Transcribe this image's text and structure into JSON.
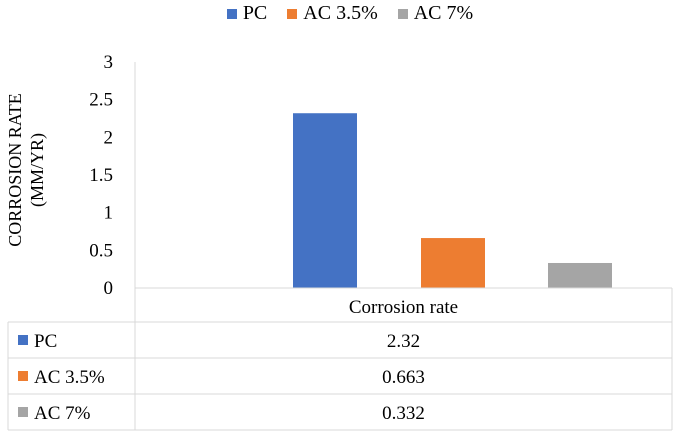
{
  "chart_data": {
    "type": "bar",
    "categories": [
      "Corrosion rate"
    ],
    "series": [
      {
        "name": "PC",
        "values": [
          2.32
        ],
        "color": "#4472C4",
        "label": "2.32"
      },
      {
        "name": "AC 3.5%",
        "values": [
          0.663
        ],
        "color": "#ED7D31",
        "label": "0.663"
      },
      {
        "name": "AC 7%",
        "values": [
          0.332
        ],
        "color": "#A5A5A5",
        "label": "0.332"
      }
    ],
    "ylabel_line1": "CORROSION RATE",
    "ylabel_line2": "(MM/YR)",
    "yticks": [
      "0",
      "0.5",
      "1",
      "1.5",
      "2",
      "2.5",
      "3"
    ],
    "ylim": [
      0,
      3
    ],
    "legend_position": "top",
    "data_table": true,
    "grid": false
  }
}
